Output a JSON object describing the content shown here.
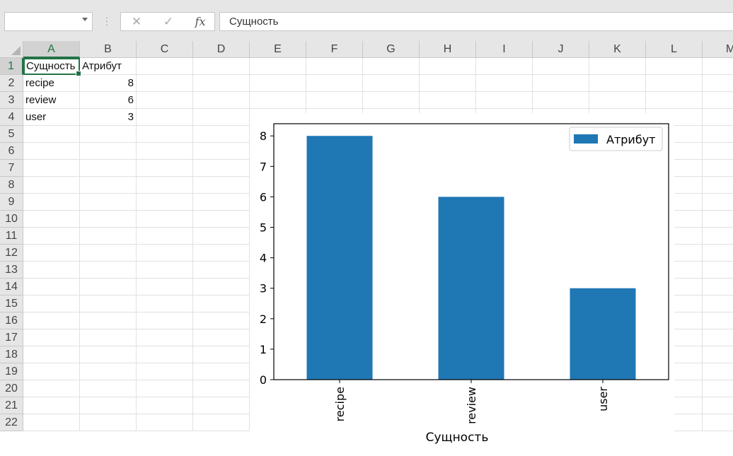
{
  "formula_bar": {
    "name_box": "",
    "cancel_icon": "✕",
    "enter_icon": "✓",
    "fx_label": "fx",
    "content": "Сущность"
  },
  "columns": [
    "A",
    "B",
    "C",
    "D",
    "E",
    "F",
    "G",
    "H",
    "I",
    "J",
    "K",
    "L",
    "M"
  ],
  "rows": [
    "1",
    "2",
    "3",
    "4",
    "5",
    "6",
    "7",
    "8",
    "9",
    "10",
    "11",
    "12",
    "13",
    "14",
    "15",
    "16",
    "17",
    "18",
    "19",
    "20",
    "21",
    "22"
  ],
  "sheet": {
    "active_cell": "A1",
    "cells": [
      [
        "Сущность",
        "Атрибут"
      ],
      [
        "recipe",
        "8"
      ],
      [
        "review",
        "6"
      ],
      [
        "user",
        "3"
      ]
    ]
  },
  "colors": {
    "accent": "#217346",
    "bar": "#1f77b4"
  },
  "chart_data": {
    "type": "bar",
    "categories": [
      "recipe",
      "review",
      "user"
    ],
    "series": [
      {
        "name": "Атрибут",
        "values": [
          8,
          6,
          3
        ]
      }
    ],
    "xlabel": "Сущность",
    "ylabel": "",
    "ylim": [
      0,
      8.4
    ],
    "yticks": [
      "0",
      "1",
      "2",
      "3",
      "4",
      "5",
      "6",
      "7",
      "8"
    ],
    "legend": "top-right",
    "grid": false
  }
}
